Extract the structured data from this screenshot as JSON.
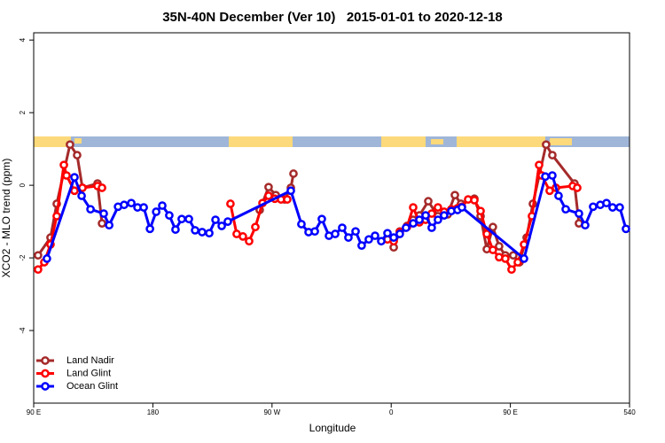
{
  "chart_data": {
    "type": "line",
    "title": "35N-40N December (Ver 10)   2015-01-01 to 2020-12-18",
    "x_label": "Longitude",
    "y_label": "XCO2 - MLO trend (ppm)",
    "xlim": [
      90,
      540
    ],
    "xticks": [
      {
        "value": 90,
        "label": "90 E"
      },
      180,
      {
        "value": 270,
        "label": "90 W"
      },
      {
        "value": 360,
        "label": "0"
      },
      {
        "value": 450,
        "label": "90 E"
      },
      540
    ],
    "ylim": [
      -6,
      4.2
    ],
    "yticks": [
      -4,
      -2,
      0,
      2,
      4
    ],
    "legend": "bottom-left",
    "series": [
      {
        "name": "Land Nadir",
        "color": "#a52a2a",
        "x": [
          93.3,
          102.7,
          107.4,
          117.4,
          122.8,
          126.8,
          138.2,
          141.6,
          200,
          260.7,
          267.4,
          272.8,
          279.5,
          284.2,
          286.2,
          320,
          361.9,
          366.5,
          371.9,
          376.6,
          381.3,
          388.0,
          395.3,
          402.7,
          408.1,
          412.7,
          422.8,
          427.5,
          432.2,
          436.8,
          441.5,
          446.2,
          452.2,
          456.9,
          462.3,
          467.0,
          477.0,
          481.7,
          498.4,
          501.8
        ],
        "values": [
          -1.93,
          -1.44,
          -0.51,
          1.12,
          0.83,
          -0.07,
          0.05,
          -1.05,
          null,
          -0.68,
          -0.05,
          -0.27,
          -0.39,
          -0.07,
          0.32,
          null,
          -1.71,
          -1.27,
          -1.12,
          -0.95,
          -0.83,
          -0.44,
          -0.85,
          -0.8,
          -0.27,
          -0.51,
          -0.37,
          -0.85,
          -1.76,
          -1.15,
          -1.68,
          -1.93,
          -1.93,
          -2.12,
          -1.44,
          -0.51,
          1.12,
          0.83,
          0.05,
          -1.05
        ]
      },
      {
        "name": "Land Glint",
        "color": "#ff0000",
        "x": [
          93.3,
          98.0,
          102.7,
          107.4,
          112.8,
          114.8,
          120.8,
          126.8,
          138.2,
          141.6,
          200,
          238.6,
          243.3,
          248.0,
          252.7,
          257.4,
          262.8,
          267.4,
          272.1,
          276.8,
          281.5,
          320,
          357.2,
          361.9,
          366.5,
          371.9,
          376.6,
          381.3,
          386.0,
          390.6,
          395.3,
          400.0,
          405.4,
          410.1,
          413.4,
          418.1,
          422.8,
          427.5,
          432.2,
          436.8,
          441.5,
          446.2,
          450.9,
          455.6,
          460.3,
          466.3,
          471.7,
          473.7,
          479.7,
          484.4,
          497.1,
          500.5
        ],
        "values": [
          -2.32,
          -2.12,
          -1.63,
          -0.85,
          0.56,
          0.27,
          -0.15,
          -0.07,
          -0.02,
          -0.07,
          null,
          -0.51,
          -1.34,
          -1.41,
          -1.54,
          -1.15,
          -0.49,
          -0.29,
          -0.37,
          -0.39,
          -0.39,
          null,
          -1.49,
          -1.54,
          -1.29,
          -1.15,
          -0.61,
          -1.02,
          -0.95,
          -0.78,
          -0.61,
          -0.73,
          -0.66,
          -0.63,
          -0.59,
          -0.39,
          -0.41,
          -0.71,
          -1.34,
          -1.78,
          -1.98,
          -2.02,
          -2.32,
          -2.12,
          -1.63,
          -0.85,
          0.56,
          0.27,
          -0.15,
          -0.07,
          -0.02,
          -0.07
        ]
      },
      {
        "name": "Ocean Glint",
        "color": "#0000ff",
        "x": [
          100.0,
          120.8,
          126.2,
          132.9,
          142.9,
          147.0,
          153.7,
          158.3,
          163.7,
          168.4,
          173.1,
          177.8,
          182.5,
          187.1,
          192.4,
          197.1,
          201.8,
          207.2,
          211.9,
          217.2,
          222.6,
          227.3,
          232.0,
          236.6,
          284.2,
          292.2,
          297.6,
          302.3,
          307.6,
          313.0,
          317.7,
          323.0,
          327.7,
          333.1,
          337.7,
          343.1,
          347.8,
          352.5,
          357.2,
          361.9,
          366.5,
          371.2,
          376.6,
          381.3,
          386.0,
          390.6,
          395.3,
          400.0,
          405.4,
          410.1,
          413.4,
          460.3,
          476.4,
          481.7,
          486.4,
          491.8,
          501.8,
          506.5,
          512.5,
          517.9,
          522.6,
          527.2,
          532.6,
          537.3
        ],
        "values": [
          -2.02,
          0.22,
          -0.29,
          -0.66,
          -0.78,
          -1.1,
          -0.59,
          -0.54,
          -0.49,
          -0.61,
          -0.61,
          -1.2,
          -0.73,
          -0.56,
          -0.83,
          -1.22,
          -0.93,
          -0.93,
          -1.24,
          -1.29,
          -1.32,
          -0.95,
          -1.12,
          -1.0,
          -0.15,
          -1.07,
          -1.29,
          -1.27,
          -0.93,
          -1.39,
          -1.34,
          -1.17,
          -1.44,
          -1.27,
          -1.66,
          -1.49,
          -1.39,
          -1.54,
          -1.32,
          -1.44,
          -1.34,
          -1.17,
          -1.05,
          -0.95,
          -0.83,
          -1.17,
          -0.95,
          -0.83,
          -0.71,
          -0.68,
          -0.61,
          -2.02,
          0.24,
          0.27,
          -0.29,
          -0.66,
          -0.78,
          -1.1,
          -0.59,
          -0.54,
          -0.49,
          -0.61,
          -0.61,
          -1.2
        ]
      }
    ]
  }
}
